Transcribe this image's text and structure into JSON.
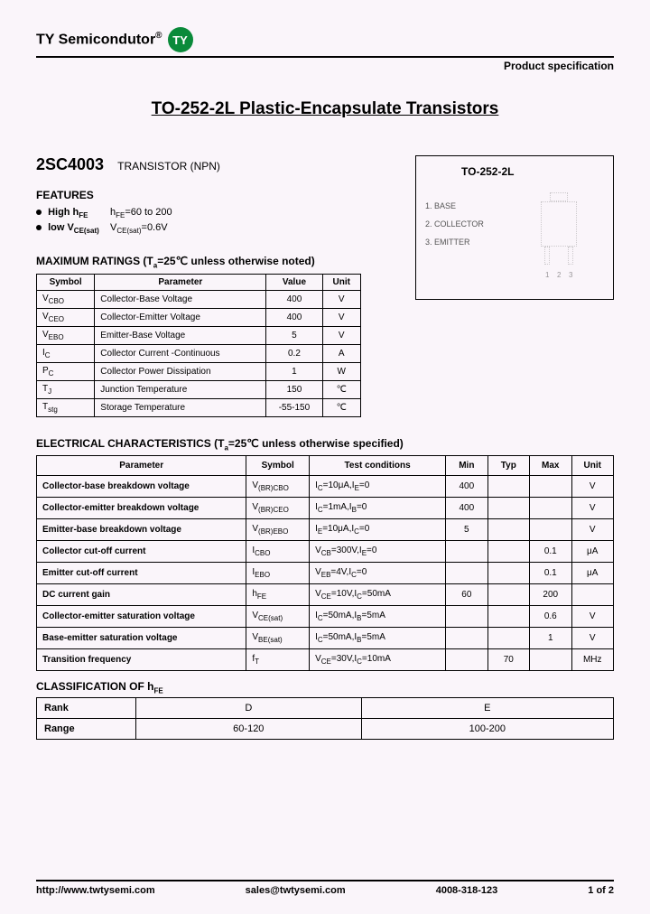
{
  "header": {
    "brand": "TY  Semicondutor",
    "logo": "TY",
    "spec_label": "Product specification"
  },
  "title": "TO-252-2L  Plastic-Encapsulate Transistors",
  "part": {
    "number": "2SC4003",
    "type": "TRANSISTOR (NPN)"
  },
  "features": {
    "title": "FEATURES",
    "f1a": "High h",
    "f1a_sub": "FE",
    "f1b": "h",
    "f1b_sub": "FE",
    "f1c": "=60 to 200",
    "f2a": "low V",
    "f2a_sub": "CE(sat)",
    "f2b": "V",
    "f2b_sub": "CE(sat)",
    "f2c": "=0.6V"
  },
  "package": {
    "title": "TO-252-2L",
    "p1": "1. BASE",
    "p2": "2. COLLECTOR",
    "p3": "3. EMITTER",
    "n1": "1",
    "n2": "2",
    "n3": "3"
  },
  "ratings": {
    "title_a": "MAXIMUM RATINGS (T",
    "title_sub": "a",
    "title_b": "=25℃ unless otherwise noted)",
    "h1": "Symbol",
    "h2": "Parameter",
    "h3": "Value",
    "h4": "Unit",
    "rows": [
      {
        "s": "V",
        "ss": "CBO",
        "p": "Collector-Base Voltage",
        "v": "400",
        "u": "V"
      },
      {
        "s": "V",
        "ss": "CEO",
        "p": "Collector-Emitter Voltage",
        "v": "400",
        "u": "V"
      },
      {
        "s": "V",
        "ss": "EBO",
        "p": "Emitter-Base Voltage",
        "v": "5",
        "u": "V"
      },
      {
        "s": "I",
        "ss": "C",
        "p": "Collector Current -Continuous",
        "v": "0.2",
        "u": "A"
      },
      {
        "s": "P",
        "ss": "C",
        "p": "Collector Power Dissipation",
        "v": "1",
        "u": "W"
      },
      {
        "s": "T",
        "ss": "J",
        "p": "Junction Temperature",
        "v": "150",
        "u": "℃"
      },
      {
        "s": "T",
        "ss": "stg",
        "p": "Storage Temperature",
        "v": "-55-150",
        "u": "℃"
      }
    ]
  },
  "elec": {
    "title_a": "ELECTRICAL    CHARACTERISTICS (T",
    "title_sub": "a",
    "title_b": "=25℃ unless    otherwise    specified)",
    "h_param": "Parameter",
    "h_sym": "Symbol",
    "h_test": "Test    conditions",
    "h_min": "Min",
    "h_typ": "Typ",
    "h_max": "Max",
    "h_unit": "Unit",
    "rows": [
      {
        "p": "Collector-base breakdown voltage",
        "s": "V",
        "ss": "(BR)CBO",
        "t": "I",
        "ts": "C",
        "tc": "=10μA,I",
        "ts2": "E",
        "tc2": "=0",
        "min": "400",
        "typ": "",
        "max": "",
        "u": "V"
      },
      {
        "p": "Collector-emitter breakdown voltage",
        "s": "V",
        "ss": "(BR)CEO",
        "t": "I",
        "ts": "C",
        "tc": "=1mA,I",
        "ts2": "B",
        "tc2": "=0",
        "min": "400",
        "typ": "",
        "max": "",
        "u": "V"
      },
      {
        "p": "Emitter-base breakdown voltage",
        "s": "V",
        "ss": "(BR)EBO",
        "t": "I",
        "ts": "E",
        "tc": "=10μA,I",
        "ts2": "C",
        "tc2": "=0",
        "min": "5",
        "typ": "",
        "max": "",
        "u": "V"
      },
      {
        "p": "Collector cut-off current",
        "s": "I",
        "ss": "CBO",
        "t": "V",
        "ts": "CB",
        "tc": "=300V,I",
        "ts2": "E",
        "tc2": "=0",
        "min": "",
        "typ": "",
        "max": "0.1",
        "u": "μA"
      },
      {
        "p": "Emitter cut-off current",
        "s": "I",
        "ss": "EBO",
        "t": "V",
        "ts": "EB",
        "tc": "=4V,I",
        "ts2": "C",
        "tc2": "=0",
        "min": "",
        "typ": "",
        "max": "0.1",
        "u": "μA"
      },
      {
        "p": "DC current gain",
        "s": "h",
        "ss": "FE",
        "t": "V",
        "ts": "CE",
        "tc": "=10V,I",
        "ts2": "C",
        "tc2": "=50mA",
        "min": "60",
        "typ": "",
        "max": "200",
        "u": ""
      },
      {
        "p": "Collector-emitter saturation voltage",
        "s": "V",
        "ss": "CE(sat)",
        "t": "I",
        "ts": "C",
        "tc": "=50mA,I",
        "ts2": "B",
        "tc2": "=5mA",
        "min": "",
        "typ": "",
        "max": "0.6",
        "u": "V"
      },
      {
        "p": "Base-emitter saturation voltage",
        "s": "V",
        "ss": "BE(sat)",
        "t": "I",
        "ts": "C",
        "tc": "=50mA,I",
        "ts2": "B",
        "tc2": "=5mA",
        "min": "",
        "typ": "",
        "max": "1",
        "u": "V"
      },
      {
        "p": "Transition frequency",
        "s": "f",
        "ss": "T",
        "t": "V",
        "ts": "CE",
        "tc": "=30V,I",
        "ts2": "C",
        "tc2": "=10mA",
        "min": "",
        "typ": "70",
        "max": "",
        "u": "MHz"
      }
    ]
  },
  "classif": {
    "title_a": "CLASSIFICATION OF   h",
    "title_sub": "FE",
    "lbl_rank": "Rank",
    "lbl_range": "Range",
    "d": "D",
    "e": "E",
    "dr": "60-120",
    "er": "100-200"
  },
  "footer": {
    "url": "http://www.twtysemi.com",
    "email": "sales@twtysemi.com",
    "phone": "4008-318-123",
    "page": "1 of 2"
  }
}
